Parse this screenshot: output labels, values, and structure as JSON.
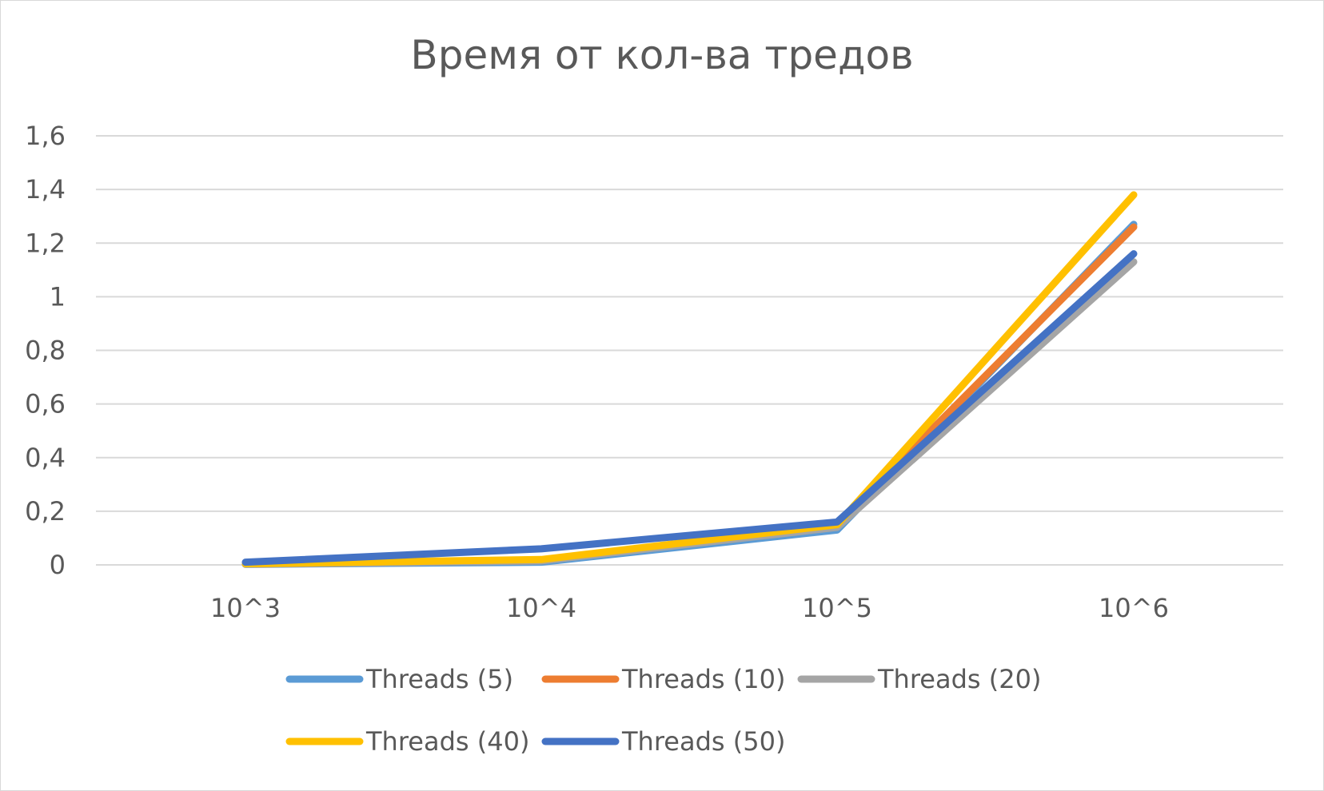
{
  "chart_data": {
    "type": "line",
    "title": "Время от кол-ва тредов",
    "xlabel": "",
    "ylabel": "",
    "categories": [
      "10^3",
      "10^4",
      "10^5",
      "10^6"
    ],
    "ylim": [
      0,
      1.6
    ],
    "yticks": [
      "0",
      "0,2",
      "0,4",
      "0,6",
      "0,8",
      "1",
      "1,2",
      "1,4",
      "1,6"
    ],
    "grid": true,
    "legend_position": "bottom",
    "series": [
      {
        "name": "Threads (5)",
        "color": "#5b9bd5",
        "values": [
          0.002,
          0.01,
          0.13,
          1.27
        ]
      },
      {
        "name": "Threads (10)",
        "color": "#ed7d31",
        "values": [
          0.003,
          0.015,
          0.15,
          1.26
        ]
      },
      {
        "name": "Threads (20)",
        "color": "#a5a5a5",
        "values": [
          0.003,
          0.015,
          0.14,
          1.13
        ]
      },
      {
        "name": "Threads (40)",
        "color": "#ffc000",
        "values": [
          0.004,
          0.02,
          0.15,
          1.38
        ]
      },
      {
        "name": "Threads (50)",
        "color": "#4472c4",
        "values": [
          0.01,
          0.06,
          0.16,
          1.16
        ]
      }
    ]
  }
}
